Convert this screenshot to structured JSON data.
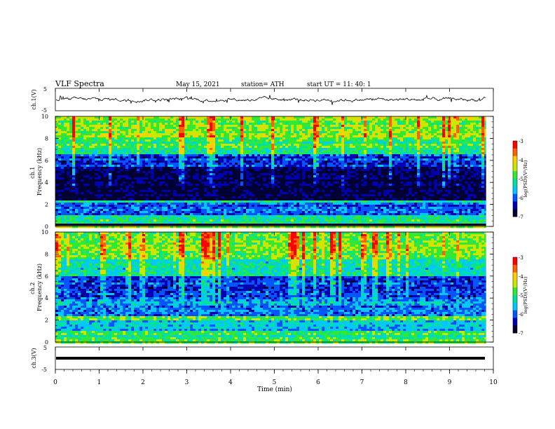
{
  "header": {
    "title": "VLF  Spectra",
    "date": "May 15, 2021",
    "station": "station= ATH",
    "start": "start  UT  =    11: 40: 1"
  },
  "chart_data": [
    {
      "type": "line",
      "id": "ch1-waveform",
      "ylabel": "ch.1(V)",
      "ylim": [
        -5,
        5
      ],
      "yticks": [
        "5",
        "-5"
      ],
      "description": "noisy waveform centred near 0 V with amplitude about ±1 V"
    },
    {
      "type": "heatmap",
      "id": "ch1-spectrogram",
      "ylabel": "ch.1\nFrequency  (kHz)",
      "ylim": [
        0,
        10
      ],
      "yticks": [
        "0",
        "2",
        "4",
        "6",
        "8",
        "10"
      ],
      "colorbar": {
        "label": "log(PSD)(V²/Hz)",
        "range": [
          -7,
          -3
        ],
        "ticks": [
          "-3",
          "-4",
          "-5",
          "-6",
          "-7"
        ]
      },
      "bands_khz": [
        {
          "range": [
            0,
            0.3
          ],
          "level": -7.0
        },
        {
          "range": [
            0.3,
            1.0
          ],
          "level": -5.2
        },
        {
          "range": [
            1.0,
            2.2
          ],
          "level": -6.0
        },
        {
          "range": [
            2.2,
            2.4
          ],
          "level": -5.0
        },
        {
          "range": [
            2.4,
            5.5
          ],
          "level": -6.8
        },
        {
          "range": [
            5.5,
            6.6
          ],
          "level": -6.2
        },
        {
          "range": [
            6.6,
            8.0
          ],
          "level": -5.0
        },
        {
          "range": [
            8.0,
            10.0
          ],
          "level": -4.6
        }
      ]
    },
    {
      "type": "heatmap",
      "id": "ch2-spectrogram",
      "ylabel": "ch.2\nFrequency  (kHz)",
      "ylim": [
        0,
        10
      ],
      "yticks": [
        "0",
        "2",
        "4",
        "6",
        "8",
        "10"
      ],
      "colorbar": {
        "label": "log(PSD)(V²/Hz)",
        "range": [
          -7,
          -3
        ],
        "ticks": [
          "-3",
          "-4",
          "-5",
          "-6",
          "-7"
        ]
      },
      "bands_khz": [
        {
          "range": [
            0,
            1.0
          ],
          "level": -5.0
        },
        {
          "range": [
            1.0,
            2.0
          ],
          "level": -5.6
        },
        {
          "range": [
            2.0,
            2.3
          ],
          "level": -4.8
        },
        {
          "range": [
            2.3,
            4.0
          ],
          "level": -5.8
        },
        {
          "range": [
            4.0,
            6.0
          ],
          "level": -6.2
        },
        {
          "range": [
            6.0,
            7.5
          ],
          "level": -5.2
        },
        {
          "range": [
            7.5,
            10.0
          ],
          "level": -4.7
        }
      ]
    },
    {
      "type": "line",
      "id": "ch3-waveform",
      "ylabel": "ch.3(V)",
      "ylim": [
        -5,
        5
      ],
      "yticks": [
        "5",
        "-5"
      ],
      "description": "flat thick line at about -1.5 V"
    }
  ],
  "xaxis": {
    "label": "Time  (min)",
    "ticks": [
      "0",
      "1",
      "2",
      "3",
      "4",
      "5",
      "6",
      "7",
      "8",
      "9",
      "10"
    ],
    "xlim": [
      0,
      10
    ],
    "data_end": 9.83
  },
  "colors": {
    "colormap": [
      "#000033",
      "#0000b0",
      "#0055ff",
      "#00c8ff",
      "#00e0a0",
      "#33e833",
      "#c8e800",
      "#ffd000",
      "#ff6000",
      "#ff0000",
      "#ffffff"
    ]
  }
}
